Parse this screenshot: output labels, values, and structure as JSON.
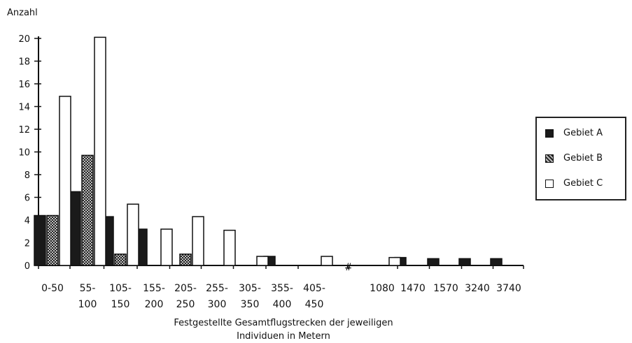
{
  "chart_data": {
    "type": "bar",
    "ylabel": "Anzahl",
    "xlabel_lines": [
      "Festgestellte Gesamtflugstrecken der jeweiligen",
      "Individuen in Metern"
    ],
    "ylim": [
      0,
      20
    ],
    "yticks": [
      0,
      2,
      4,
      6,
      8,
      10,
      12,
      14,
      16,
      18,
      20
    ],
    "axis_break_marker": "#",
    "categories": [
      {
        "line1": "0-50",
        "line2": ""
      },
      {
        "line1": "55-",
        "line2": "100"
      },
      {
        "line1": "105-",
        "line2": "150"
      },
      {
        "line1": "155-",
        "line2": "200"
      },
      {
        "line1": "205-",
        "line2": "250"
      },
      {
        "line1": "255-",
        "line2": "300"
      },
      {
        "line1": "305-",
        "line2": "350"
      },
      {
        "line1": "355-",
        "line2": "400"
      },
      {
        "line1": "405-",
        "line2": "450"
      },
      {
        "line1": "1080",
        "line2": ""
      },
      {
        "line1": "1470",
        "line2": ""
      },
      {
        "line1": "1570",
        "line2": ""
      },
      {
        "line1": "3240",
        "line2": ""
      },
      {
        "line1": "3740",
        "line2": ""
      }
    ],
    "series": [
      {
        "name": "Gebiet A",
        "values": [
          4.4,
          6.5,
          4.3,
          3.2,
          0,
          0,
          0,
          0.8,
          0,
          0,
          0.7,
          0.6,
          0.6,
          0.6
        ]
      },
      {
        "name": "Gebiet B",
        "values": [
          4.4,
          9.7,
          1.0,
          0,
          1.0,
          0,
          0,
          0,
          0,
          0,
          0,
          0,
          0,
          0
        ]
      },
      {
        "name": "Gebiet C",
        "values": [
          14.9,
          20.1,
          5.4,
          3.2,
          4.3,
          3.1,
          0.8,
          0,
          0.8,
          0.7,
          0,
          0,
          0,
          0
        ]
      }
    ],
    "legend_position": "right",
    "colors": {
      "Gebiet A": "#1a1a1a",
      "Gebiet B": "#777777",
      "Gebiet C": "#ffffff"
    }
  }
}
